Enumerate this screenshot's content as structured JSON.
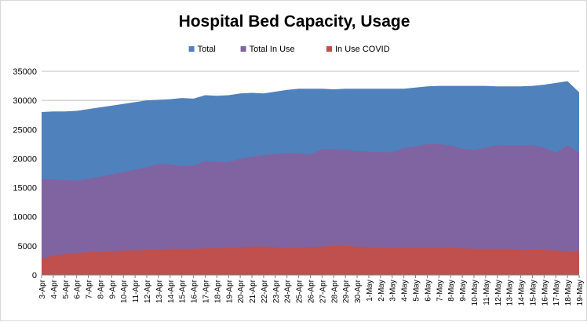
{
  "chart_data": {
    "type": "area",
    "title": "Hospital Bed Capacity, Usage",
    "xlabel": "",
    "ylabel": "",
    "ylim": [
      0,
      35000
    ],
    "y_ticks": [
      0,
      5000,
      10000,
      15000,
      20000,
      25000,
      30000,
      35000
    ],
    "grid": true,
    "legend_position": "top",
    "categories": [
      "3-Apr",
      "4-Apr",
      "5-Apr",
      "6-Apr",
      "7-Apr",
      "8-Apr",
      "9-Apr",
      "10-Apr",
      "11-Apr",
      "12-Apr",
      "13-Apr",
      "14-Apr",
      "15-Apr",
      "16-Apr",
      "17-Apr",
      "18-Apr",
      "19-Apr",
      "20-Apr",
      "21-Apr",
      "22-Apr",
      "23-Apr",
      "24-Apr",
      "25-Apr",
      "26-Apr",
      "27-Apr",
      "28-Apr",
      "29-Apr",
      "30-Apr",
      "1-May",
      "2-May",
      "3-May",
      "4-May",
      "5-May",
      "6-May",
      "7-May",
      "8-May",
      "9-May",
      "10-May",
      "11-May",
      "12-May",
      "13-May",
      "14-May",
      "15-May",
      "16-May",
      "17-May",
      "18-May",
      "19-May"
    ],
    "series": [
      {
        "name": "Total",
        "color": "#4f81bd",
        "values": [
          28000,
          28100,
          28100,
          28200,
          28500,
          28800,
          29100,
          29400,
          29700,
          30000,
          30100,
          30200,
          30400,
          30300,
          30900,
          30800,
          30900,
          31200,
          31300,
          31200,
          31500,
          31800,
          32000,
          32000,
          32000,
          31900,
          32000,
          32000,
          32000,
          32000,
          32000,
          32000,
          32200,
          32400,
          32500,
          32500,
          32500,
          32500,
          32500,
          32400,
          32400,
          32400,
          32500,
          32700,
          33000,
          33300,
          31400
        ]
      },
      {
        "name": "Total In Use",
        "color": "#8064a2",
        "values": [
          16500,
          16400,
          16300,
          16200,
          16500,
          16900,
          17300,
          17700,
          18100,
          18500,
          19100,
          19000,
          18700,
          18800,
          19600,
          19400,
          19400,
          20000,
          20300,
          20600,
          20800,
          21000,
          20900,
          20700,
          21600,
          21600,
          21500,
          21300,
          21200,
          21100,
          21100,
          21800,
          22100,
          22500,
          22500,
          22300,
          21700,
          21500,
          21900,
          22300,
          22300,
          22300,
          22300,
          21900,
          21000,
          22300,
          21000
        ]
      },
      {
        "name": "In Use COVID",
        "color": "#c0504d",
        "values": [
          2900,
          3300,
          3600,
          3800,
          3900,
          4000,
          4100,
          4200,
          4200,
          4300,
          4400,
          4500,
          4500,
          4500,
          4600,
          4600,
          4700,
          4800,
          4900,
          4900,
          4800,
          4700,
          4700,
          4800,
          4900,
          5000,
          5000,
          4900,
          4800,
          4700,
          4700,
          4800,
          4800,
          4800,
          4800,
          4700,
          4600,
          4500,
          4500,
          4500,
          4500,
          4400,
          4400,
          4300,
          4200,
          4100,
          4000
        ]
      }
    ]
  }
}
